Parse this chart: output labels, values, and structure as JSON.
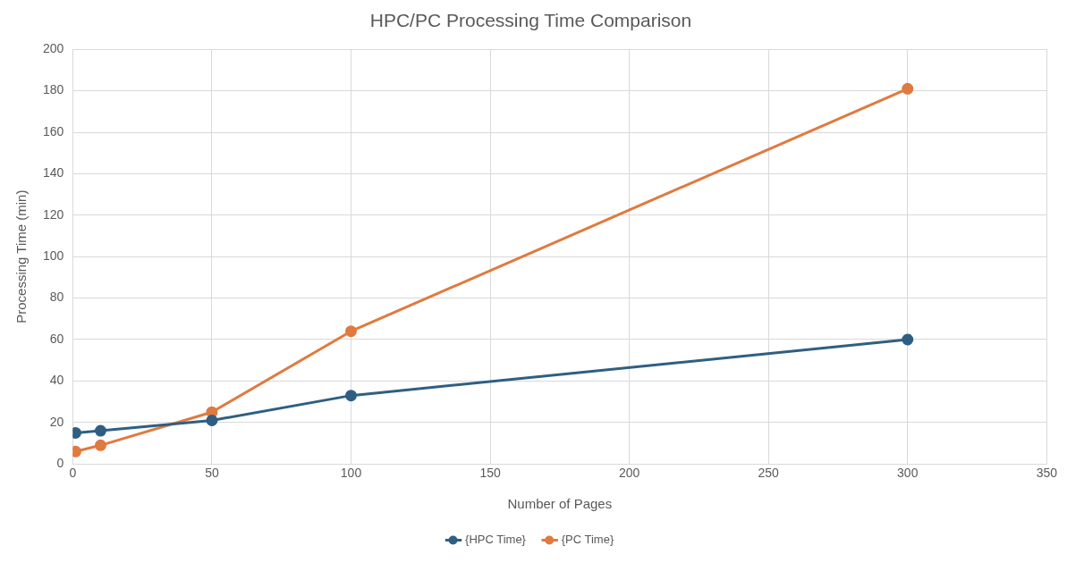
{
  "chart_data": {
    "type": "line",
    "title": "HPC/PC Processing Time Comparison",
    "xlabel": "Number of Pages",
    "ylabel": "Processing Time (min)",
    "series": [
      {
        "name": "{HPC Time}",
        "color": "#2e5f82",
        "x": [
          1,
          10,
          50,
          100,
          300
        ],
        "values": [
          15,
          16,
          21,
          33,
          60
        ]
      },
      {
        "name": "{PC Time}",
        "color": "#e07a3f",
        "x": [
          1,
          10,
          50,
          100,
          300
        ],
        "values": [
          6,
          9,
          25,
          64,
          181
        ]
      }
    ],
    "xlim": [
      0,
      350
    ],
    "xticks": [
      0,
      50,
      100,
      150,
      200,
      250,
      300,
      350
    ],
    "ylim": [
      0,
      200
    ],
    "yticks": [
      0,
      20,
      40,
      60,
      80,
      100,
      120,
      140,
      160,
      180,
      200
    ],
    "grid": true,
    "legend": "bottom",
    "marker": "circle",
    "line_style": "solid"
  }
}
